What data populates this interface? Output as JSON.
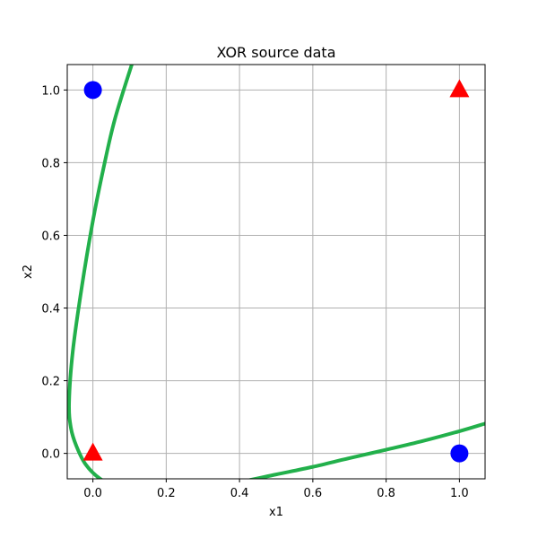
{
  "chart_data": {
    "type": "scatter",
    "title": "XOR source data",
    "xlabel": "x1",
    "ylabel": "x2",
    "xlim": [
      -0.07,
      1.07
    ],
    "ylim": [
      -0.07,
      1.07
    ],
    "grid": true,
    "x_ticks": [
      "0.0",
      "0.2",
      "0.4",
      "0.6",
      "0.8",
      "1.0"
    ],
    "x_tick_values": [
      0.0,
      0.2,
      0.4,
      0.6,
      0.8,
      1.0
    ],
    "y_ticks": [
      "0.0",
      "0.2",
      "0.4",
      "0.6",
      "0.8",
      "1.0"
    ],
    "y_tick_values": [
      0.0,
      0.2,
      0.4,
      0.6,
      0.8,
      1.0
    ],
    "series": [
      {
        "marker": "circle",
        "color": "#0000ff",
        "points": [
          [
            0,
            1
          ],
          [
            1,
            0
          ]
        ]
      },
      {
        "marker": "triangle",
        "color": "#ff0000",
        "points": [
          [
            0,
            0
          ],
          [
            1,
            1
          ]
        ]
      }
    ],
    "decision_boundary": {
      "color": "#22b04b",
      "points": [
        [
          0.106,
          1.07
        ],
        [
          0.06,
          0.92
        ],
        [
          0.03,
          0.79
        ],
        [
          0.0,
          0.64
        ],
        [
          -0.03,
          0.46
        ],
        [
          -0.055,
          0.28
        ],
        [
          -0.065,
          0.14
        ],
        [
          -0.06,
          0.07
        ],
        [
          -0.045,
          0.02
        ],
        [
          -0.02,
          -0.03
        ],
        [
          0.02,
          -0.07
        ],
        [
          0.07,
          -0.093
        ],
        [
          0.12,
          -0.102
        ],
        [
          0.17,
          -0.105
        ],
        [
          0.22,
          -0.103
        ],
        [
          0.3,
          -0.096
        ],
        [
          0.4,
          -0.079
        ],
        [
          0.5,
          -0.058
        ],
        [
          0.6,
          -0.037
        ],
        [
          0.7,
          -0.013
        ],
        [
          0.8,
          0.01
        ],
        [
          0.9,
          0.034
        ],
        [
          1.0,
          0.061
        ],
        [
          1.07,
          0.082
        ]
      ]
    }
  }
}
